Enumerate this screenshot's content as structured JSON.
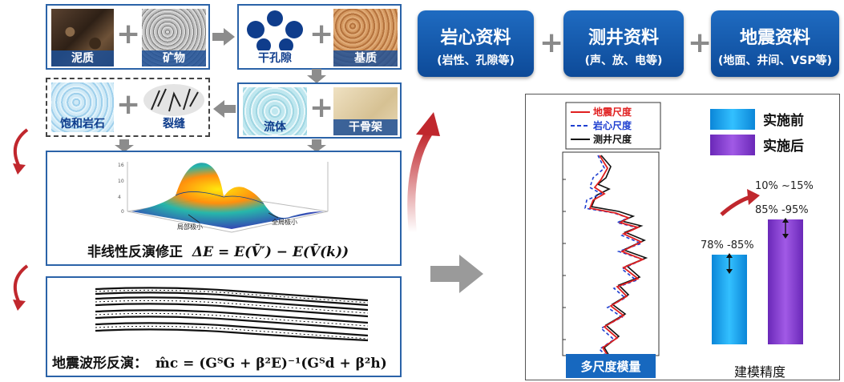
{
  "rock_model": {
    "tiles": {
      "clay": "泥质",
      "mineral": "矿物",
      "pore": "干孔隙",
      "matrix": "基质",
      "saturated_rock": "饱和岩石",
      "fracture": "裂缝",
      "fluid": "流体",
      "dry_frame": "干骨架"
    }
  },
  "inversion": {
    "nonlinear_label": "非线性反演修正",
    "nonlinear_formula": "ΔE = E(V̄′) − E(V̄(k))",
    "surface_annotations": {
      "local_min": "局部极小",
      "global_min": "全局极小"
    },
    "waveform_label": "地震波形反演：",
    "waveform_formula": "m̂c = (GᵀG + β²E)⁻¹(Gᵀd + β²h)"
  },
  "data_sources": [
    {
      "title": "岩心资料",
      "subtitle": "(岩性、孔隙等)"
    },
    {
      "title": "测井资料",
      "subtitle": "(声、放、电等)"
    },
    {
      "title": "地震资料",
      "subtitle": "(地面、井间、VSP等)"
    }
  ],
  "multiscale": {
    "caption": "多尺度模量",
    "legend": [
      "地震尺度",
      "岩心尺度",
      "测井尺度"
    ],
    "colors": {
      "seismic": "#e02020",
      "core": "#1e3fd0",
      "log": "#111111"
    }
  },
  "accuracy": {
    "legend_before": "实施前",
    "legend_after": "实施后",
    "before_range": "78% -85%",
    "after_range": "85% -95%",
    "improvement": "10% ~15%",
    "caption": "建模精度",
    "colors": {
      "before": "#19a8f0",
      "after": "#8a3fd0"
    }
  }
}
